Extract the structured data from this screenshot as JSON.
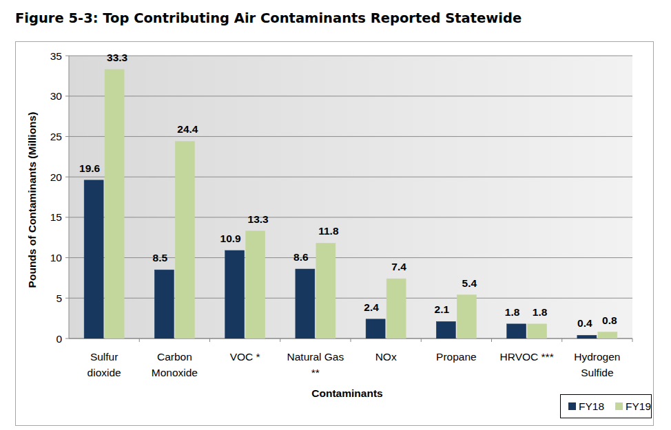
{
  "chart_data": {
    "type": "bar",
    "title": "Figure 5-3: Top Contributing Air Contaminants Reported Statewide",
    "x_label": "Contaminants",
    "y_label": "Pounds of Contaminants (Millions)",
    "categories": [
      "Sulfur dioxide",
      "Carbon Monoxide",
      "VOC *",
      "Natural Gas **",
      "NOx",
      "Propane",
      "HRVOC ***",
      "Hydrogen Sulfide"
    ],
    "series": [
      {
        "name": "FY18",
        "color": "#17375e",
        "values": [
          19.6,
          8.5,
          10.9,
          8.6,
          2.4,
          2.1,
          1.8,
          0.4
        ]
      },
      {
        "name": "FY19",
        "color": "#c3d69b",
        "values": [
          33.3,
          24.4,
          13.3,
          11.8,
          7.4,
          5.4,
          1.8,
          0.8
        ]
      }
    ],
    "ylim": [
      0,
      35
    ],
    "yticks": [
      0,
      5,
      10,
      15,
      20,
      25,
      30,
      35
    ],
    "grid": true,
    "legend": "lower right",
    "data_labels": true
  }
}
